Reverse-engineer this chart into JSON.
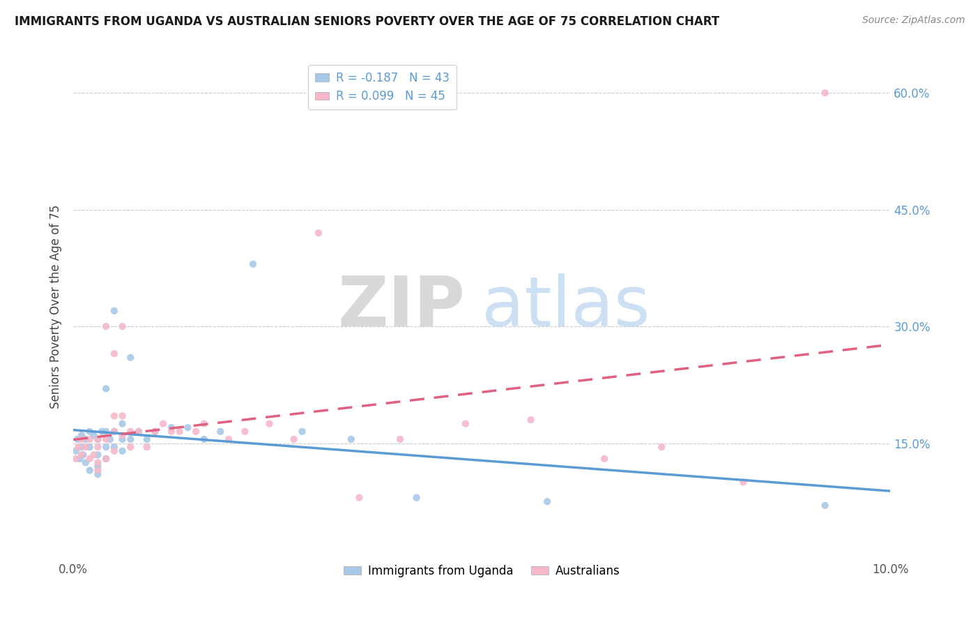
{
  "title": "IMMIGRANTS FROM UGANDA VS AUSTRALIAN SENIORS POVERTY OVER THE AGE OF 75 CORRELATION CHART",
  "source": "Source: ZipAtlas.com",
  "ylabel": "Seniors Poverty Over the Age of 75",
  "r_blue": -0.187,
  "n_blue": 43,
  "r_pink": 0.099,
  "n_pink": 45,
  "blue_color": "#a8c8e8",
  "pink_color": "#f4b8c8",
  "blue_line_color": "#5b9bd5",
  "pink_line_color": "#e06080",
  "xlim": [
    0.0,
    0.1
  ],
  "ylim": [
    0.0,
    0.65
  ],
  "watermark_zip": "ZIP",
  "watermark_atlas": "atlas",
  "blue_scatter_x": [
    0.0003,
    0.0005,
    0.0008,
    0.001,
    0.001,
    0.0012,
    0.0015,
    0.0015,
    0.002,
    0.002,
    0.002,
    0.0025,
    0.003,
    0.003,
    0.003,
    0.003,
    0.0035,
    0.004,
    0.004,
    0.004,
    0.004,
    0.0045,
    0.005,
    0.005,
    0.005,
    0.006,
    0.006,
    0.006,
    0.007,
    0.007,
    0.008,
    0.009,
    0.01,
    0.012,
    0.014,
    0.016,
    0.018,
    0.022,
    0.028,
    0.034,
    0.042,
    0.058,
    0.092
  ],
  "blue_scatter_y": [
    0.14,
    0.155,
    0.13,
    0.16,
    0.145,
    0.135,
    0.155,
    0.125,
    0.165,
    0.145,
    0.115,
    0.16,
    0.155,
    0.135,
    0.12,
    0.11,
    0.165,
    0.22,
    0.165,
    0.145,
    0.13,
    0.155,
    0.32,
    0.165,
    0.145,
    0.175,
    0.155,
    0.14,
    0.26,
    0.155,
    0.165,
    0.155,
    0.165,
    0.17,
    0.17,
    0.155,
    0.165,
    0.38,
    0.165,
    0.155,
    0.08,
    0.075,
    0.07
  ],
  "pink_scatter_x": [
    0.0003,
    0.0006,
    0.001,
    0.001,
    0.0015,
    0.002,
    0.002,
    0.0025,
    0.003,
    0.003,
    0.003,
    0.003,
    0.004,
    0.004,
    0.004,
    0.005,
    0.005,
    0.005,
    0.005,
    0.006,
    0.006,
    0.006,
    0.007,
    0.007,
    0.008,
    0.009,
    0.01,
    0.011,
    0.012,
    0.013,
    0.015,
    0.016,
    0.019,
    0.021,
    0.024,
    0.027,
    0.03,
    0.035,
    0.04,
    0.048,
    0.056,
    0.065,
    0.072,
    0.082,
    0.092
  ],
  "pink_scatter_y": [
    0.13,
    0.145,
    0.155,
    0.135,
    0.145,
    0.155,
    0.13,
    0.135,
    0.155,
    0.145,
    0.125,
    0.115,
    0.3,
    0.155,
    0.13,
    0.265,
    0.185,
    0.165,
    0.14,
    0.3,
    0.185,
    0.16,
    0.165,
    0.145,
    0.165,
    0.145,
    0.165,
    0.175,
    0.165,
    0.165,
    0.165,
    0.175,
    0.155,
    0.165,
    0.175,
    0.155,
    0.42,
    0.08,
    0.155,
    0.175,
    0.18,
    0.13,
    0.145,
    0.1,
    0.6
  ],
  "yticks": [
    0.0,
    0.15,
    0.3,
    0.45,
    0.6
  ],
  "ytick_labels": [
    "",
    "15.0%",
    "30.0%",
    "45.0%",
    "60.0%"
  ],
  "xticks": [
    0.0,
    0.02,
    0.04,
    0.06,
    0.08,
    0.1
  ],
  "xtick_labels": [
    "0.0%",
    "",
    "",
    "",
    "",
    "10.0%"
  ],
  "legend_blue_label": "R = -0.187   N = 43",
  "legend_pink_label": "R = 0.099   N = 45",
  "bottom_legend_blue": "Immigrants from Uganda",
  "bottom_legend_pink": "Australians"
}
